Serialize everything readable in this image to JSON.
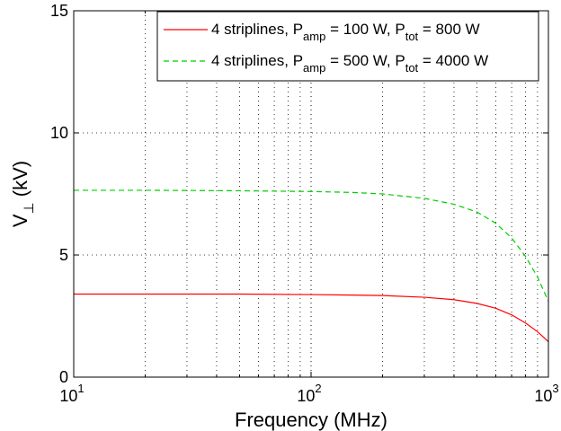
{
  "chart_data": {
    "type": "line",
    "xscale": "log",
    "xlim": [
      10,
      1000
    ],
    "ylim": [
      0,
      15
    ],
    "grid": true,
    "legend_position": "top-right",
    "xlabel": "Frequency (MHz)",
    "ylabel": {
      "main": "V",
      "sub": "⊥",
      "suffix": " (kV)"
    },
    "xticks": [
      {
        "value": 10,
        "base": "10",
        "exp": "1"
      },
      {
        "value": 100,
        "base": "10",
        "exp": "2"
      },
      {
        "value": 1000,
        "base": "10",
        "exp": "3"
      }
    ],
    "yticks": [
      {
        "value": 0,
        "label": "0"
      },
      {
        "value": 5,
        "label": "5"
      },
      {
        "value": 10,
        "label": "10"
      },
      {
        "value": 15,
        "label": "15"
      }
    ],
    "series": [
      {
        "legend": {
          "prefix": "4 striplines, P",
          "sub1": "amp",
          "mid": " = 100 W, P",
          "sub2": "tot",
          "suffix": " = 800 W"
        },
        "color": "#ff0000",
        "dash": "solid",
        "x": [
          10,
          20,
          50,
          100,
          150,
          200,
          300,
          400,
          500,
          600,
          700,
          800,
          900,
          1000
        ],
        "y": [
          3.4,
          3.4,
          3.4,
          3.38,
          3.36,
          3.34,
          3.27,
          3.17,
          3.02,
          2.82,
          2.55,
          2.22,
          1.86,
          1.45
        ]
      },
      {
        "legend": {
          "prefix": "4 striplines, P",
          "sub1": "amp",
          "mid": " = 500 W, P",
          "sub2": "tot",
          "suffix": " = 4000 W"
        },
        "color": "#00cc00",
        "dash": "dashed",
        "x": [
          10,
          20,
          50,
          100,
          150,
          200,
          300,
          400,
          500,
          600,
          700,
          800,
          900,
          1000
        ],
        "y": [
          7.65,
          7.65,
          7.63,
          7.6,
          7.56,
          7.5,
          7.32,
          7.08,
          6.76,
          6.3,
          5.7,
          4.95,
          4.1,
          3.1
        ]
      }
    ]
  }
}
